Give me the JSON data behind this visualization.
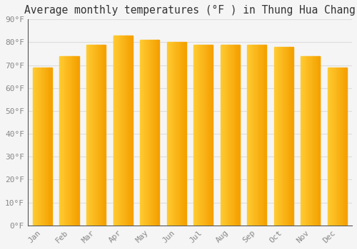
{
  "title": "Average monthly temperatures (°F ) in Thung Hua Chang",
  "months": [
    "Jan",
    "Feb",
    "Mar",
    "Apr",
    "May",
    "Jun",
    "Jul",
    "Aug",
    "Sep",
    "Oct",
    "Nov",
    "Dec"
  ],
  "values": [
    69,
    74,
    79,
    83,
    81,
    80,
    79,
    79,
    79,
    78,
    74,
    69
  ],
  "bar_color_left": "#FFCC44",
  "bar_color_right": "#F5A000",
  "bar_color_mid": "#FBB822",
  "background_color": "#F5F5F5",
  "ytick_labels": [
    "0°F",
    "10°F",
    "20°F",
    "30°F",
    "40°F",
    "50°F",
    "60°F",
    "70°F",
    "80°F",
    "90°F"
  ],
  "ytick_values": [
    0,
    10,
    20,
    30,
    40,
    50,
    60,
    70,
    80,
    90
  ],
  "ylim": [
    0,
    90
  ],
  "title_fontsize": 10.5,
  "tick_fontsize": 8,
  "grid_color": "#DDDDDD",
  "font_family": "monospace",
  "text_color": "#888888",
  "title_color": "#333333",
  "spine_color": "#555555"
}
